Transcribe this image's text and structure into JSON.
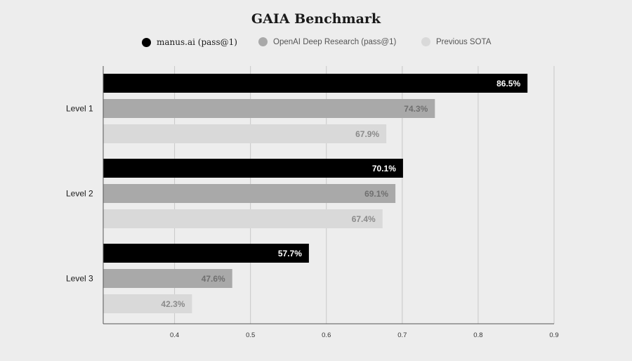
{
  "colors": {
    "manus": "#000000",
    "openai": "#a9a9a9",
    "sota": "#d9d9d9",
    "background": "#ededed",
    "grid": "#c8c8c8"
  },
  "chart_data": {
    "type": "bar",
    "orientation": "horizontal",
    "title": "GAIA Benchmark",
    "categories": [
      "Level 1",
      "Level 2",
      "Level 3"
    ],
    "series": [
      {
        "name": "manus.ai (pass@1)",
        "values": [
          0.865,
          0.701,
          0.577
        ],
        "labels": [
          "86.5%",
          "70.1%",
          "57.7%"
        ]
      },
      {
        "name": "OpenAI Deep Research (pass@1)",
        "values": [
          0.743,
          0.691,
          0.476
        ],
        "labels": [
          "74.3%",
          "69.1%",
          "47.6%"
        ]
      },
      {
        "name": "Previous SOTA",
        "values": [
          0.679,
          0.674,
          0.423
        ],
        "labels": [
          "67.9%",
          "67.4%",
          "42.3%"
        ]
      }
    ],
    "xticks": [
      "0.4",
      "0.5",
      "0.6",
      "0.7",
      "0.8",
      "0.9"
    ],
    "xlim": [
      0.306,
      0.9
    ],
    "grid": true,
    "legend_position": "top"
  }
}
